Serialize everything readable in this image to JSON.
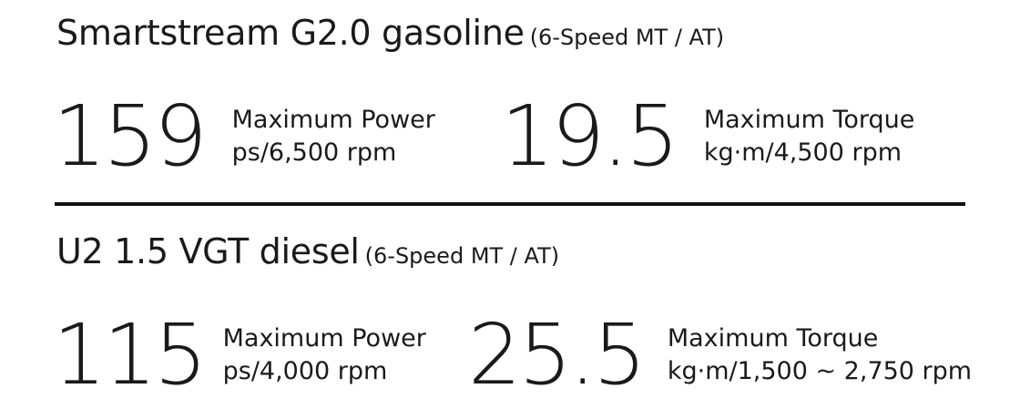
{
  "sections": [
    {
      "engine_name": "Smartstream G2.0 gasoline",
      "transmission": "(6-Speed MT / AT)",
      "power": {
        "value": "159",
        "label": "Maximum Power",
        "unit": "ps/6,500 rpm"
      },
      "torque": {
        "value": "19.5",
        "label": "Maximum Torque",
        "unit": "kg·m/4,500 rpm"
      }
    },
    {
      "engine_name": "U2 1.5 VGT diesel",
      "transmission": "(6-Speed MT / AT)",
      "power": {
        "value": "115",
        "label": "Maximum Power",
        "unit": "ps/4,000 rpm"
      },
      "torque": {
        "value": "25.5",
        "label": "Maximum Torque",
        "unit": "kg·m/1,500 ~ 2,750 rpm"
      }
    }
  ]
}
